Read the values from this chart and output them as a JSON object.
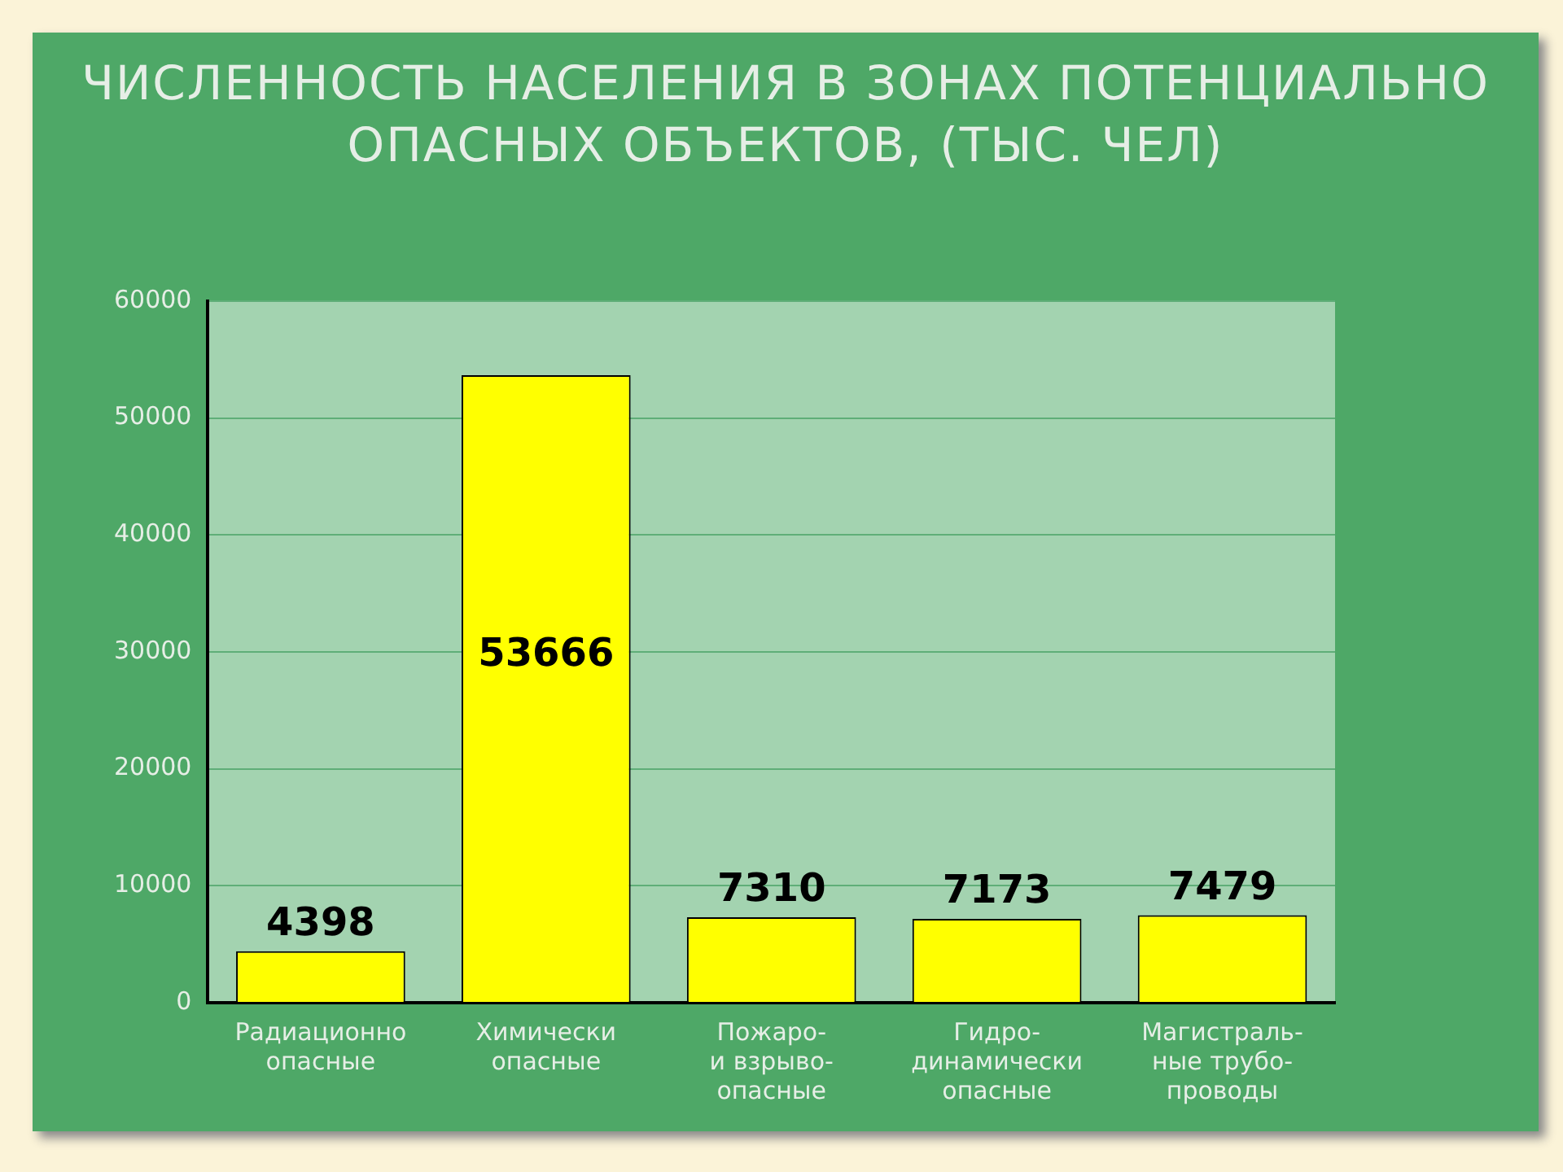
{
  "chart_data": {
    "type": "bar",
    "title": "ЧИСЛЕННОСТЬ НАСЕЛЕНИЯ В ЗОНАХ ПОТЕНЦИАЛЬНО ОПАСНЫХ ОБЪЕКТОВ, (ТЫС. ЧЕЛ)",
    "categories": [
      "Радиационно\nопасные",
      "Химически\nопасные",
      "Пожаро-\nи взрыво-\nопасные",
      "Гидро-\nдинамически\nопасные",
      "Магистраль-\nные трубо-\nпроводы"
    ],
    "values": [
      4398,
      53666,
      7310,
      7173,
      7479
    ],
    "color": "#ffff00",
    "ylim": [
      0,
      60000
    ],
    "yticks": [
      0,
      10000,
      20000,
      30000,
      40000,
      50000,
      60000
    ],
    "grid": "y",
    "legend": false,
    "data_labels": true
  }
}
